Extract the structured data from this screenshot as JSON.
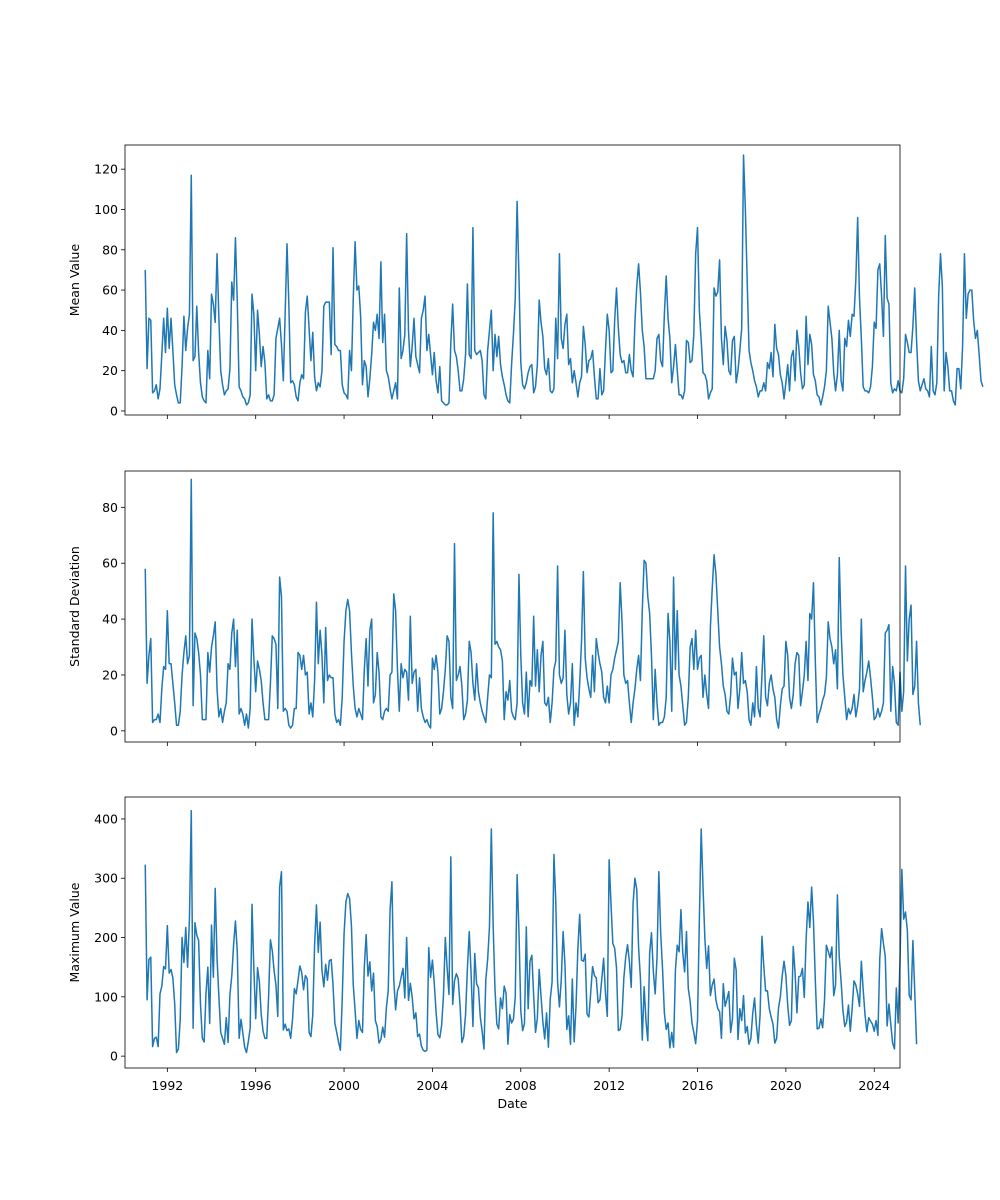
{
  "chart_data": [
    {
      "type": "line",
      "ylabel": "Mean Value",
      "xlabel": "",
      "ylim": [
        -2,
        132
      ],
      "yticks": [
        0,
        20,
        40,
        60,
        80,
        100,
        120
      ],
      "xticks": [
        "1992",
        "1996",
        "2000",
        "2004",
        "2008",
        "2012",
        "2016",
        "2020",
        "2024"
      ],
      "xticks_labels_shown": false,
      "x_range": [
        "1990-02",
        "2025-03"
      ],
      "line_color": "#1f77b4",
      "x_start": "1991-01",
      "x_step": "month",
      "values": [
        70,
        21,
        46,
        45,
        9,
        10,
        13,
        6,
        11,
        28,
        46,
        29,
        51,
        31,
        46,
        30,
        13,
        8,
        4,
        4,
        22,
        47,
        30,
        41,
        48,
        117,
        25,
        27,
        52,
        29,
        14,
        7,
        5,
        4,
        30,
        16,
        58,
        53,
        44,
        78,
        46,
        20,
        13,
        8,
        10,
        11,
        21,
        64,
        55,
        86,
        54,
        12,
        10,
        7,
        6,
        3,
        4,
        8,
        58,
        48,
        20,
        50,
        38,
        22,
        32,
        24,
        6,
        8,
        5,
        5,
        8,
        36,
        41,
        46,
        33,
        15,
        48,
        83,
        53,
        14,
        15,
        13,
        7,
        5,
        14,
        18,
        16,
        49,
        57,
        41,
        25,
        39,
        17,
        10,
        14,
        12,
        20,
        52,
        54,
        54,
        54,
        28,
        81,
        33,
        32,
        30,
        30,
        13,
        9,
        8,
        6,
        30,
        20,
        56,
        84,
        60,
        62,
        47,
        13,
        25,
        22,
        7,
        16,
        28,
        44,
        40,
        48,
        36,
        74,
        34,
        48,
        20,
        17,
        11,
        6,
        10,
        14,
        6,
        61,
        26,
        30,
        38,
        88,
        40,
        22,
        32,
        46,
        27,
        23,
        19,
        46,
        50,
        57,
        30,
        38,
        28,
        18,
        29,
        15,
        9,
        22,
        5,
        4,
        3,
        3,
        4,
        34,
        53,
        30,
        27,
        20,
        10,
        10,
        16,
        28,
        63,
        28,
        26,
        91,
        30,
        28,
        29,
        30,
        25,
        8,
        6,
        30,
        40,
        50,
        20,
        38,
        27,
        37,
        23,
        17,
        13,
        8,
        5,
        4,
        23,
        38,
        56,
        104,
        67,
        24,
        13,
        11,
        14,
        19,
        22,
        23,
        9,
        12,
        23,
        55,
        44,
        37,
        21,
        18,
        26,
        10,
        9,
        11,
        46,
        26,
        78,
        36,
        31,
        43,
        48,
        23,
        26,
        14,
        20,
        14,
        7,
        14,
        17,
        42,
        33,
        19,
        25,
        26,
        30,
        17,
        6,
        6,
        21,
        8,
        10,
        30,
        48,
        40,
        19,
        20,
        45,
        61,
        41,
        28,
        24,
        25,
        19,
        19,
        28,
        20,
        17,
        44,
        62,
        73,
        59,
        40,
        32,
        16,
        16,
        16,
        16,
        16,
        20,
        36,
        38,
        25,
        22,
        48,
        67,
        46,
        36,
        14,
        22,
        33,
        20,
        8,
        8,
        6,
        10,
        35,
        34,
        24,
        25,
        38,
        78,
        91,
        50,
        35,
        19,
        18,
        15,
        6,
        9,
        11,
        61,
        57,
        59,
        75,
        36,
        23,
        42,
        35,
        20,
        18,
        35,
        37,
        14,
        20,
        30,
        41,
        127,
        100,
        64,
        30,
        24,
        20,
        15,
        12,
        7,
        10,
        10,
        14,
        10,
        24,
        21,
        29,
        17,
        43,
        31,
        28,
        18,
        14,
        6,
        14,
        23,
        10,
        27,
        30,
        15,
        40,
        32,
        19,
        11,
        13,
        47,
        23,
        38,
        33,
        18,
        15,
        8,
        7,
        3,
        7,
        12,
        20,
        52,
        44,
        36,
        19,
        10,
        18,
        40,
        15,
        10,
        36,
        32,
        45,
        37,
        48,
        47,
        65,
        96,
        56,
        36,
        12,
        10,
        10,
        9,
        12,
        22,
        44,
        41,
        70,
        73,
        57,
        37,
        87,
        56,
        53,
        14,
        9,
        11,
        10,
        15,
        10,
        9,
        16,
        38,
        34,
        29,
        29,
        42,
        61,
        35,
        15,
        10,
        13,
        16,
        11,
        10,
        7,
        32,
        10,
        8,
        14,
        57,
        78,
        62,
        10,
        29,
        22,
        10,
        10,
        5,
        3,
        21,
        21,
        11,
        32,
        78,
        46,
        58,
        60,
        60,
        45,
        36,
        40,
        28,
        15,
        12
      ]
    },
    {
      "type": "line",
      "ylabel": "Standard Deviation",
      "xlabel": "",
      "ylim": [
        -4,
        93
      ],
      "yticks": [
        0,
        20,
        40,
        60,
        80
      ],
      "xticks": [
        "1992",
        "1996",
        "2000",
        "2004",
        "2008",
        "2012",
        "2016",
        "2020",
        "2024"
      ],
      "xticks_labels_shown": false,
      "x_range": [
        "1990-02",
        "2025-03"
      ],
      "line_color": "#1f77b4",
      "x_start": "1991-01",
      "x_step": "month",
      "values": [
        58,
        17,
        27,
        33,
        3,
        4,
        4,
        6,
        3,
        15,
        23,
        22,
        43,
        24,
        24,
        17,
        10,
        2,
        2,
        7,
        20,
        28,
        34,
        24,
        27,
        90,
        9,
        35,
        33,
        28,
        20,
        4,
        4,
        4,
        28,
        21,
        30,
        34,
        39,
        15,
        5,
        8,
        3,
        7,
        10,
        24,
        22,
        35,
        40,
        23,
        36,
        6,
        8,
        6,
        2,
        6,
        1,
        8,
        40,
        26,
        14,
        25,
        22,
        18,
        10,
        4,
        4,
        4,
        17,
        34,
        33,
        31,
        8,
        55,
        48,
        7,
        8,
        7,
        2,
        1,
        2,
        8,
        8,
        28,
        27,
        22,
        27,
        20,
        21,
        6,
        10,
        5,
        18,
        46,
        24,
        36,
        27,
        10,
        37,
        18,
        20,
        19,
        19,
        6,
        3,
        4,
        2,
        12,
        32,
        43,
        47,
        43,
        28,
        16,
        8,
        5,
        8,
        6,
        4,
        22,
        33,
        16,
        36,
        40,
        10,
        13,
        28,
        21,
        5,
        4,
        7,
        8,
        7,
        20,
        21,
        49,
        43,
        22,
        7,
        24,
        19,
        22,
        21,
        11,
        41,
        17,
        21,
        22,
        7,
        19,
        8,
        5,
        3,
        4,
        2,
        1,
        26,
        22,
        27,
        21,
        6,
        8,
        14,
        22,
        34,
        32,
        12,
        8,
        67,
        18,
        20,
        23,
        16,
        4,
        6,
        11,
        32,
        28,
        17,
        11,
        24,
        14,
        10,
        7,
        5,
        3,
        12,
        20,
        19,
        78,
        31,
        32,
        30,
        29,
        25,
        4,
        14,
        11,
        18,
        7,
        5,
        4,
        10,
        56,
        27,
        10,
        6,
        21,
        5,
        18,
        16,
        41,
        16,
        29,
        14,
        27,
        32,
        10,
        9,
        12,
        3,
        10,
        22,
        25,
        59,
        20,
        17,
        19,
        36,
        13,
        6,
        10,
        24,
        2,
        10,
        5,
        17,
        32,
        57,
        26,
        19,
        15,
        12,
        27,
        14,
        33,
        28,
        24,
        21,
        12,
        10,
        16,
        10,
        20,
        22,
        26,
        29,
        32,
        53,
        39,
        20,
        17,
        18,
        10,
        3,
        10,
        15,
        22,
        27,
        18,
        43,
        61,
        60,
        48,
        42,
        27,
        4,
        22,
        10,
        2,
        3,
        3,
        5,
        12,
        42,
        32,
        7,
        55,
        22,
        43,
        20,
        16,
        9,
        2,
        3,
        12,
        30,
        33,
        22,
        36,
        22,
        26,
        27,
        12,
        20,
        13,
        8,
        37,
        51,
        63,
        56,
        43,
        30,
        24,
        16,
        13,
        7,
        6,
        13,
        26,
        20,
        21,
        8,
        15,
        28,
        17,
        18,
        14,
        4,
        2,
        10,
        5,
        23,
        8,
        5,
        20,
        34,
        12,
        9,
        17,
        20,
        15,
        12,
        4,
        1,
        9,
        15,
        16,
        32,
        27,
        12,
        8,
        13,
        24,
        28,
        27,
        9,
        14,
        20,
        32,
        18,
        42,
        40,
        53,
        25,
        3,
        6,
        8,
        11,
        13,
        19,
        39,
        33,
        30,
        24,
        29,
        15,
        62,
        36,
        20,
        12,
        4,
        8,
        6,
        8,
        13,
        5,
        9,
        15,
        40,
        14,
        18,
        21,
        25,
        19,
        12,
        4,
        5,
        8,
        5,
        7,
        10,
        35,
        36,
        38,
        7,
        23,
        17,
        3,
        2,
        21,
        7,
        14,
        59,
        25,
        40,
        45,
        13,
        16,
        32,
        10,
        2
      ]
    },
    {
      "type": "line",
      "ylabel": "Maximum Value",
      "xlabel": "Date",
      "ylim": [
        -20,
        437
      ],
      "yticks": [
        0,
        100,
        200,
        300,
        400
      ],
      "xticks": [
        "1992",
        "1996",
        "2000",
        "2004",
        "2008",
        "2012",
        "2016",
        "2020",
        "2024"
      ],
      "xticks_labels_shown": true,
      "x_range": [
        "1990-02",
        "2025-03"
      ],
      "line_color": "#1f77b4",
      "x_start": "1991-01",
      "x_step": "month",
      "values": [
        323,
        95,
        163,
        167,
        16,
        30,
        32,
        16,
        105,
        118,
        151,
        147,
        220,
        140,
        146,
        132,
        88,
        6,
        12,
        62,
        200,
        158,
        217,
        150,
        231,
        414,
        47,
        225,
        204,
        195,
        88,
        30,
        24,
        106,
        150,
        55,
        221,
        133,
        283,
        165,
        101,
        40,
        30,
        20,
        65,
        23,
        104,
        135,
        188,
        228,
        176,
        30,
        62,
        40,
        15,
        6,
        25,
        47,
        256,
        147,
        63,
        149,
        125,
        70,
        42,
        30,
        30,
        100,
        196,
        178,
        144,
        120,
        67,
        285,
        311,
        44,
        54,
        43,
        46,
        30,
        62,
        114,
        105,
        128,
        152,
        141,
        112,
        136,
        130,
        40,
        33,
        70,
        188,
        255,
        175,
        226,
        145,
        117,
        155,
        128,
        161,
        163,
        120,
        56,
        40,
        24,
        10,
        96,
        206,
        260,
        274,
        266,
        220,
        120,
        77,
        30,
        60,
        45,
        40,
        150,
        205,
        135,
        159,
        110,
        140,
        60,
        50,
        22,
        28,
        49,
        32,
        82,
        111,
        247,
        294,
        129,
        78,
        110,
        118,
        133,
        148,
        98,
        200,
        94,
        123,
        100,
        63,
        73,
        33,
        37,
        17,
        10,
        8,
        10,
        183,
        133,
        162,
        123,
        74,
        36,
        31,
        52,
        102,
        200,
        148,
        104,
        336,
        87,
        127,
        139,
        131,
        86,
        23,
        33,
        70,
        148,
        210,
        140,
        50,
        173,
        122,
        115,
        66,
        42,
        12,
        129,
        163,
        219,
        383,
        219,
        112,
        54,
        46,
        98,
        80,
        118,
        106,
        20,
        70,
        56,
        62,
        100,
        306,
        212,
        77,
        43,
        55,
        218,
        80,
        160,
        170,
        102,
        40,
        64,
        146,
        101,
        58,
        29,
        73,
        15,
        96,
        125,
        340,
        262,
        124,
        83,
        130,
        210,
        155,
        45,
        68,
        20,
        130,
        24,
        84,
        181,
        239,
        162,
        160,
        172,
        71,
        66,
        108,
        151,
        136,
        132,
        90,
        95,
        130,
        165,
        107,
        67,
        331,
        257,
        190,
        182,
        149,
        43,
        45,
        68,
        132,
        167,
        188,
        159,
        116,
        258,
        300,
        281,
        183,
        131,
        27,
        117,
        60,
        26,
        173,
        208,
        143,
        105,
        166,
        311,
        207,
        148,
        73,
        45,
        56,
        14,
        40,
        15,
        145,
        187,
        176,
        247,
        174,
        142,
        210,
        114,
        92,
        56,
        40,
        21,
        60,
        230,
        383,
        285,
        198,
        148,
        186,
        102,
        120,
        130,
        95,
        80,
        75,
        30,
        122,
        84,
        96,
        109,
        40,
        63,
        165,
        145,
        28,
        80,
        60,
        102,
        39,
        50,
        20,
        30,
        72,
        98,
        52,
        22,
        70,
        202,
        152,
        110,
        110,
        80,
        66,
        54,
        22,
        30,
        81,
        100,
        135,
        160,
        136,
        86,
        52,
        60,
        185,
        141,
        73,
        134,
        135,
        148,
        99,
        197,
        260,
        217,
        285,
        227,
        128,
        46,
        47,
        63,
        48,
        95,
        187,
        177,
        166,
        184,
        102,
        120,
        272,
        167,
        126,
        77,
        50,
        58,
        86,
        42,
        80,
        127,
        120,
        105,
        84,
        160,
        112,
        70,
        41,
        65,
        59,
        54,
        42,
        60,
        35,
        163,
        215,
        190,
        168,
        51,
        88,
        53,
        22,
        12,
        115,
        56,
        160,
        315,
        231,
        243,
        212,
        103,
        95,
        195,
        110,
        20
      ]
    }
  ]
}
